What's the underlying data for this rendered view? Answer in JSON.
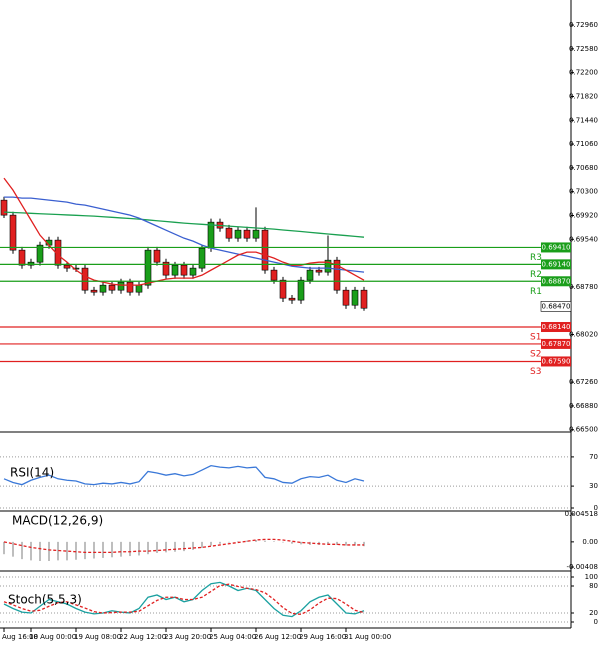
{
  "chart_data": [
    {
      "type": "candlestick",
      "x": [
        "Aug 16:00",
        null,
        null,
        "18 Aug 00:00",
        null,
        null,
        null,
        null,
        "19 Aug 08:00",
        null,
        null,
        null,
        null,
        "22 Aug 12:00",
        null,
        null,
        null,
        null,
        "23 Aug 20:00",
        null,
        null,
        null,
        null,
        "25 Aug 04:00",
        null,
        null,
        null,
        null,
        "26 Aug 12:00",
        null,
        null,
        null,
        null,
        "29 Aug 16:00",
        null,
        null,
        null,
        null,
        "31 Aug 00:00",
        null,
        null
      ],
      "open": [
        0.70165,
        0.69926,
        0.69367,
        0.69127,
        0.69175,
        0.69447,
        0.69527,
        0.69127,
        0.6908,
        0.6908,
        0.68728,
        0.68696,
        0.68808,
        0.68728,
        0.68856,
        0.68696,
        0.68808,
        0.69367,
        0.69175,
        0.68968,
        0.69127,
        0.68968,
        0.6908,
        0.69399,
        0.69814,
        0.69718,
        0.69558,
        0.69686,
        0.69558,
        0.69686,
        0.69048,
        0.68888,
        0.686,
        0.68569,
        0.68888,
        0.69048,
        0.69016,
        0.69207,
        0.68728,
        0.68488,
        0.68728
      ],
      "high": [
        0.7022,
        0.6998,
        0.6942,
        0.6923,
        0.695,
        0.6958,
        0.6958,
        0.6918,
        0.6914,
        0.6913,
        0.6878,
        0.6886,
        0.6886,
        0.6891,
        0.6891,
        0.6886,
        0.6942,
        0.6942,
        0.6923,
        0.6918,
        0.6918,
        0.6913,
        0.6945,
        0.6987,
        0.6987,
        0.6977,
        0.6974,
        0.6974,
        0.7005,
        0.6974,
        0.691,
        0.6894,
        0.6865,
        0.6894,
        0.691,
        0.691,
        0.696,
        0.6926,
        0.6878,
        0.6878,
        0.6878
      ],
      "low": [
        0.6988,
        0.6931,
        0.6907,
        0.6907,
        0.6912,
        0.6939,
        0.6907,
        0.6902,
        0.6902,
        0.6867,
        0.6864,
        0.6864,
        0.6867,
        0.6867,
        0.6864,
        0.6864,
        0.6875,
        0.6912,
        0.6891,
        0.6891,
        0.6891,
        0.6891,
        0.6902,
        0.6934,
        0.6966,
        0.695,
        0.695,
        0.695,
        0.695,
        0.6899,
        0.6883,
        0.6854,
        0.6851,
        0.6851,
        0.6883,
        0.6896,
        0.6896,
        0.6867,
        0.6843,
        0.6843,
        0.684
      ],
      "close": [
        0.69926,
        0.69367,
        0.69127,
        0.69175,
        0.69447,
        0.69527,
        0.69127,
        0.6908,
        0.6908,
        0.68728,
        0.68696,
        0.68808,
        0.68728,
        0.68856,
        0.68696,
        0.68808,
        0.69367,
        0.69175,
        0.68968,
        0.69127,
        0.68968,
        0.6908,
        0.69399,
        0.69814,
        0.69718,
        0.69558,
        0.69686,
        0.69558,
        0.69686,
        0.69048,
        0.68888,
        0.686,
        0.68569,
        0.68888,
        0.69048,
        0.69016,
        0.69207,
        0.68728,
        0.68488,
        0.68728,
        0.6844
      ],
      "up_color": "#1a9e1a",
      "down_color": "#e02020",
      "series": [
        {
          "color": "#1aa050",
          "values": [
            0.69974,
            0.69968,
            0.69962,
            0.69955,
            0.69948,
            0.69942,
            0.69936,
            0.69929,
            0.69923,
            0.69916,
            0.6991,
            0.699,
            0.69891,
            0.69881,
            0.69872,
            0.69862,
            0.69849,
            0.69836,
            0.69824,
            0.69811,
            0.69798,
            0.69788,
            0.69779,
            0.69769,
            0.6976,
            0.6975,
            0.6974,
            0.69731,
            0.69721,
            0.69712,
            0.69702,
            0.69689,
            0.69676,
            0.69664,
            0.69651,
            0.69638,
            0.69625,
            0.69612,
            0.696,
            0.69587,
            0.69574
          ]
        },
        {
          "color": "#3a5fd0",
          "values": [
            0.70213,
            0.70213,
            0.70197,
            0.70197,
            0.70181,
            0.70165,
            0.70149,
            0.70133,
            0.70101,
            0.70085,
            0.70053,
            0.70022,
            0.6999,
            0.69958,
            0.69926,
            0.69878,
            0.69814,
            0.6975,
            0.69686,
            0.69622,
            0.69558,
            0.69511,
            0.69447,
            0.69399,
            0.69367,
            0.69335,
            0.69303,
            0.69271,
            0.69239,
            0.69207,
            0.69175,
            0.69143,
            0.69111,
            0.69095,
            0.6908,
            0.6908,
            0.6908,
            0.69064,
            0.69048,
            0.69032,
            0.69016
          ]
        },
        {
          "color": "#e02020",
          "values": [
            0.70517,
            0.70325,
            0.70085,
            0.69846,
            0.69606,
            0.69447,
            0.69287,
            0.69175,
            0.69048,
            0.68952,
            0.68888,
            0.68856,
            0.68824,
            0.68808,
            0.68808,
            0.68808,
            0.6884,
            0.68872,
            0.68904,
            0.6892,
            0.6892,
            0.6892,
            0.68968,
            0.69048,
            0.69127,
            0.69207,
            0.69287,
            0.69335,
            0.69335,
            0.69287,
            0.69239,
            0.69175,
            0.69127,
            0.69127,
            0.69159,
            0.69175,
            0.69175,
            0.69127,
            0.69048,
            0.68968,
            0.68888
          ]
        }
      ],
      "levels": [
        {
          "name": "R3",
          "value": 0.6941,
          "value_label": "0.69410",
          "color": "#1a9e1a"
        },
        {
          "name": "R2",
          "value": 0.6914,
          "value_label": "0.69140",
          "color": "#1a9e1a"
        },
        {
          "name": "R1",
          "value": 0.6887,
          "value_label": "0.68870",
          "color": "#1a9e1a"
        },
        {
          "name": "S1",
          "value": 0.6814,
          "value_label": "0.68140",
          "color": "#e02020"
        },
        {
          "name": "S2",
          "value": 0.6787,
          "value_label": "0.67870",
          "color": "#e02020"
        },
        {
          "name": "S3",
          "value": 0.6759,
          "value_label": "0.67590",
          "color": "#e02020"
        }
      ],
      "current_price": {
        "value": 0.6847,
        "value_label": "0.68470"
      },
      "ylim": [
        0.6648,
        0.7336
      ],
      "yticks": [
        {
          "value": 0.7296,
          "label": "0.72960"
        },
        {
          "value": 0.7258,
          "label": "0.72580"
        },
        {
          "value": 0.722,
          "label": "0.72200"
        },
        {
          "value": 0.7182,
          "label": "0.71820"
        },
        {
          "value": 0.7144,
          "label": "0.71440"
        },
        {
          "value": 0.7106,
          "label": "0.71060"
        },
        {
          "value": 0.7068,
          "label": "0.70680"
        },
        {
          "value": 0.703,
          "label": "0.70300"
        },
        {
          "value": 0.6992,
          "label": "0.69920"
        },
        {
          "value": 0.6954,
          "label": "0.69540"
        },
        {
          "value": 0.6878,
          "label": "0.68780"
        },
        {
          "value": 0.6802,
          "label": "0.68020"
        },
        {
          "value": 0.6726,
          "label": "0.67260"
        },
        {
          "value": 0.6688,
          "label": "0.66880"
        },
        {
          "value": 0.665,
          "label": "0.66500"
        }
      ]
    },
    {
      "type": "line",
      "title": "RSI(14)",
      "ylim": [
        0,
        100
      ],
      "yticks": [
        70,
        30,
        0
      ],
      "grid": true,
      "series": [
        {
          "color": "#3a78d8",
          "values": [
            40,
            35,
            32,
            38,
            42,
            45,
            40,
            38,
            37,
            33,
            32,
            34,
            33,
            35,
            33,
            36,
            50,
            48,
            45,
            47,
            44,
            46,
            52,
            58,
            56,
            55,
            57,
            55,
            56,
            42,
            40,
            35,
            34,
            40,
            43,
            42,
            45,
            38,
            35,
            40,
            37
          ]
        }
      ]
    },
    {
      "type": "macd",
      "title": "MACD(12,26,9)",
      "ylim": [
        -0.00456,
        0.00484
      ],
      "yticks": [
        0.004518,
        {
          "value": 0,
          "label": "0.00"
        },
        -0.00408
      ],
      "histogram": {
        "color": "#a8a8a8",
        "values": [
          -0.002,
          -0.0024,
          -0.0028,
          -0.003,
          -0.0031,
          -0.0031,
          -0.003,
          -0.003,
          -0.0029,
          -0.0028,
          -0.0027,
          -0.0026,
          -0.0025,
          -0.0024,
          -0.0023,
          -0.0022,
          -0.002,
          -0.0018,
          -0.0017,
          -0.0016,
          -0.0015,
          -0.0013,
          -0.001,
          -0.0006,
          -0.0003,
          -0.0001,
          0.0001,
          0.0002,
          0.0003,
          0.0002,
          0.0001,
          -0.0001,
          -0.0003,
          -0.0004,
          -0.0005,
          -0.0005,
          -0.0004,
          -0.0005,
          -0.0006,
          -0.0006,
          -0.0007
        ]
      },
      "series": [
        {
          "color": "#e02020",
          "dash": true,
          "values": [
            0.0,
            -0.0003,
            -0.0006,
            -0.0009,
            -0.0011,
            -0.0013,
            -0.0014,
            -0.0015,
            -0.0016,
            -0.0017,
            -0.0017,
            -0.0017,
            -0.0017,
            -0.0016,
            -0.0016,
            -0.0015,
            -0.0015,
            -0.0014,
            -0.0013,
            -0.0012,
            -0.0011,
            -0.001,
            -0.0009,
            -0.0007,
            -0.0005,
            -0.0003,
            -0.0001,
            0.0001,
            0.0003,
            0.0004,
            0.0004,
            0.0003,
            0.0001,
            -0.0001,
            -0.0002,
            -0.0003,
            -0.0004,
            -0.0004,
            -0.0005,
            -0.0005,
            -0.0005
          ]
        }
      ]
    },
    {
      "type": "line",
      "title": "Stoch(5,5,3)",
      "ylim": [
        0,
        100
      ],
      "yticks": [
        100,
        80,
        20,
        0
      ],
      "grid": true,
      "series": [
        {
          "color": "#1aa0a0",
          "values": [
            40,
            30,
            22,
            20,
            35,
            50,
            45,
            40,
            30,
            22,
            18,
            20,
            25,
            22,
            20,
            30,
            55,
            60,
            50,
            55,
            45,
            50,
            70,
            85,
            88,
            80,
            70,
            75,
            70,
            50,
            30,
            15,
            12,
            25,
            45,
            55,
            60,
            40,
            20,
            18,
            25
          ]
        },
        {
          "color": "#e02020",
          "dash": true,
          "values": [
            45,
            38,
            30,
            24,
            26,
            35,
            43,
            45,
            38,
            31,
            23,
            20,
            21,
            22,
            22,
            24,
            36,
            48,
            55,
            55,
            50,
            50,
            55,
            68,
            81,
            84,
            79,
            75,
            72,
            65,
            50,
            32,
            19,
            17,
            27,
            42,
            53,
            52,
            40,
            26,
            21
          ]
        }
      ]
    }
  ]
}
